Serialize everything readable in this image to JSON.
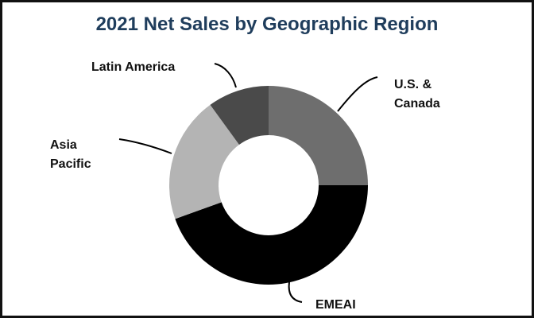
{
  "title": "2021 Net Sales by Geographic Region",
  "chart_data": {
    "type": "pie",
    "variant": "donut",
    "title": "2021 Net Sales by Geographic Region",
    "categories": [
      "U.S. & Canada",
      "EMEAI",
      "Asia Pacific",
      "Latin America"
    ],
    "values": [
      25,
      44.5,
      20.5,
      10
    ],
    "unit": "% of net sales (estimated from slice angles)",
    "colors": [
      "#6e6e6e",
      "#000000",
      "#b4b4b4",
      "#4a4a4a"
    ],
    "start_angle": "12 o'clock, clockwise",
    "legend": "none (leader-line labels)"
  },
  "labels": {
    "us_canada_line1": "U.S. &",
    "us_canada_line2": "Canada",
    "emeai": "EMEAI",
    "asia_line1": "Asia",
    "asia_line2": "Pacific",
    "latin": "Latin America"
  }
}
